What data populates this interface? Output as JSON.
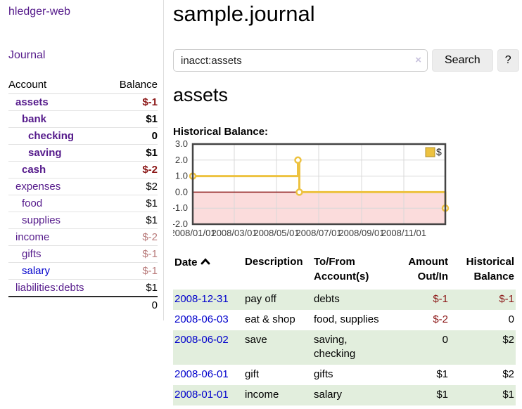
{
  "sidebar": {
    "brand": "hledger-web",
    "journal_link": "Journal",
    "accounts_table": {
      "headers": [
        "Account",
        "Balance"
      ],
      "rows": [
        {
          "name": "assets",
          "balance": "$-1"
        },
        {
          "name": "bank",
          "balance": "$1"
        },
        {
          "name": "checking",
          "balance": "0"
        },
        {
          "name": "saving",
          "balance": "$1"
        },
        {
          "name": "cash",
          "balance": "$-2"
        },
        {
          "name": "expenses",
          "balance": "$2"
        },
        {
          "name": "food",
          "balance": "$1"
        },
        {
          "name": "supplies",
          "balance": "$1"
        },
        {
          "name": "income",
          "balance": "$-2"
        },
        {
          "name": "gifts",
          "balance": "$-1"
        },
        {
          "name": "salary",
          "balance": "$-1"
        },
        {
          "name": "liabilities:debts",
          "balance": "$1"
        }
      ],
      "total": "0"
    }
  },
  "main": {
    "title": "sample.journal",
    "search": {
      "value": "inacct:assets",
      "clear_icon": "×",
      "search_button": "Search",
      "help_button": "?"
    },
    "account_heading": "assets",
    "chart_title": "Historical Balance:",
    "register": {
      "headers": [
        "Date",
        "Description",
        "To/From Account(s)",
        "Amount Out/In",
        "Historical Balance"
      ],
      "rows": [
        {
          "date": "2008-12-31",
          "description": "pay off",
          "accounts": "debts",
          "amount": "$-1",
          "balance": "$-1"
        },
        {
          "date": "2008-06-03",
          "description": "eat & shop",
          "accounts": "food, supplies",
          "amount": "$-2",
          "balance": "0"
        },
        {
          "date": "2008-06-02",
          "description": "save",
          "accounts": "saving, checking",
          "amount": "0",
          "balance": "$2"
        },
        {
          "date": "2008-06-01",
          "description": "gift",
          "accounts": "gifts",
          "amount": "$1",
          "balance": "$2"
        },
        {
          "date": "2008-01-01",
          "description": "income",
          "accounts": "salary",
          "amount": "$1",
          "balance": "$1"
        }
      ]
    }
  },
  "chart_data": {
    "type": "line",
    "step": true,
    "title": "Historical Balance",
    "series": [
      {
        "name": "$",
        "color": "#edc240",
        "points": [
          [
            "2008-01-01",
            1
          ],
          [
            "2008-06-01",
            2
          ],
          [
            "2008-06-03",
            0
          ],
          [
            "2008-12-31",
            -1
          ]
        ]
      }
    ],
    "x_range": [
      "2008-01-01",
      "2008-12-31"
    ],
    "x_ticks": [
      "2008/01/01",
      "2008/03/01",
      "2008/05/01",
      "2008/07/01",
      "2008/09/01",
      "2008/11/01"
    ],
    "y_ticks": [
      3.0,
      2.0,
      1.0,
      0.0,
      -1.0,
      -2.0
    ],
    "ylim": [
      -2,
      3
    ],
    "grid": true,
    "legend_position": "top-right",
    "negative_region_color": "#fbdcdc",
    "zero_line_color": "#8b1a1a"
  },
  "colors": {
    "link_purple": "#551a8b",
    "link_blue": "#0000cc",
    "negative_strong": "#8b1616",
    "negative_muted": "#b87a7a",
    "row_green": "#e2eedd",
    "series_gold": "#edc240",
    "plot_border": "#444444"
  }
}
